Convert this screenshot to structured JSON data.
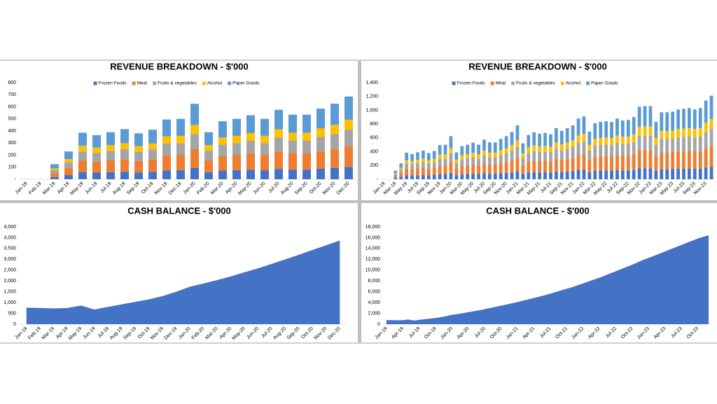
{
  "chart_data": [
    {
      "type": "bar",
      "stacked": true,
      "title": "REVENUE BREAKDOWN - $'000",
      "categories": [
        "Jan-19",
        "Feb-19",
        "Mar-19",
        "Apr-19",
        "May-19",
        "Jun-19",
        "Jul-19",
        "Aug-19",
        "Sep-19",
        "Oct-19",
        "Nov-19",
        "Dec-19",
        "Jan-20",
        "Feb-20",
        "Mar-20",
        "Apr-20",
        "May-20",
        "Jun-20",
        "Jul-20",
        "Aug-20",
        "Sep-20",
        "Oct-20",
        "Nov-20",
        "Dec-20"
      ],
      "series": [
        {
          "name": "Frozen Foods",
          "color": "#4472c4",
          "values": [
            0,
            0,
            19,
            35,
            58,
            55,
            59,
            62,
            57,
            62,
            74,
            75,
            94,
            59,
            72,
            75,
            80,
            75,
            86,
            80,
            80,
            88,
            94,
            103
          ]
        },
        {
          "name": "Meat",
          "color": "#ed7d31",
          "values": [
            0,
            0,
            31,
            58,
            96,
            91,
            98,
            104,
            95,
            103,
            124,
            125,
            156,
            98,
            120,
            125,
            133,
            125,
            144,
            134,
            134,
            146,
            156,
            171
          ]
        },
        {
          "name": "Fruits & vegetables",
          "color": "#a5a5a5",
          "values": [
            0,
            0,
            25,
            46,
            77,
            73,
            78,
            83,
            76,
            82,
            99,
            100,
            125,
            78,
            96,
            100,
            106,
            100,
            115,
            107,
            107,
            117,
            125,
            137
          ]
        },
        {
          "name": "Alcohol",
          "color": "#ffc000",
          "values": [
            0,
            0,
            15,
            28,
            46,
            44,
            47,
            50,
            46,
            49,
            59,
            60,
            75,
            47,
            58,
            60,
            64,
            60,
            69,
            64,
            64,
            70,
            75,
            82
          ]
        },
        {
          "name": "Paper Goods",
          "color": "#5b9bd5",
          "values": [
            0,
            0,
            35,
            63,
            108,
            102,
            108,
            116,
            106,
            114,
            139,
            140,
            175,
            108,
            134,
            140,
            147,
            140,
            161,
            150,
            150,
            164,
            175,
            192
          ]
        }
      ],
      "ylim": [
        0,
        800
      ],
      "yticks": [
        {
          "value": 0,
          "label": "-"
        },
        100,
        200,
        300,
        400,
        500,
        600,
        700,
        800
      ],
      "legend": "top"
    },
    {
      "type": "bar",
      "stacked": true,
      "title": "REVENUE BREAKDOWN - $'000",
      "categories": [
        "Jan-19",
        null,
        "Mar-19",
        null,
        "May-19",
        null,
        "Jul-19",
        null,
        "Sep-19",
        null,
        "Nov-19",
        null,
        "Jan-20",
        null,
        "Mar-20",
        null,
        "May-20",
        null,
        "Jul-20",
        null,
        "Sep-20",
        null,
        "Nov-20",
        null,
        "Jan-21",
        null,
        "Mar-21",
        null,
        "May-21",
        null,
        "Jul-21",
        null,
        "Sep-21",
        null,
        "Nov-21",
        null,
        "Jan-22",
        null,
        "Mar-22",
        null,
        "May-22",
        null,
        "Jul-22",
        null,
        "Sep-22",
        null,
        "Nov-22",
        null,
        "Jan-23",
        null,
        "Mar-23",
        null,
        "May-23",
        null,
        "Jul-23",
        null,
        "Sep-23",
        null,
        "Nov-23",
        null
      ],
      "series": [
        {
          "name": "Frozen Foods",
          "color": "#4472c4",
          "values": [
            0,
            0,
            19,
            35,
            58,
            55,
            59,
            62,
            57,
            62,
            74,
            75,
            94,
            59,
            72,
            75,
            80,
            75,
            86,
            80,
            80,
            88,
            94,
            103,
            117,
            78,
            96,
            102,
            99,
            101,
            98,
            111,
            105,
            111,
            117,
            132,
            137,
            104,
            122,
            125,
            126,
            125,
            132,
            128,
            129,
            135,
            158,
            159,
            159,
            125,
            146,
            146,
            147,
            152,
            153,
            155,
            152,
            155,
            171,
            182
          ]
        },
        {
          "name": "Meat",
          "color": "#ed7d31",
          "values": [
            0,
            0,
            31,
            58,
            96,
            91,
            98,
            104,
            95,
            103,
            124,
            125,
            156,
            98,
            120,
            125,
            133,
            125,
            144,
            134,
            134,
            146,
            156,
            171,
            195,
            130,
            160,
            170,
            165,
            168,
            163,
            185,
            175,
            185,
            195,
            220,
            228,
            173,
            203,
            208,
            210,
            208,
            220,
            213,
            215,
            225,
            263,
            265,
            265,
            208,
            243,
            243,
            245,
            253,
            255,
            258,
            253,
            258,
            285,
            303
          ]
        },
        {
          "name": "Fruits & vegetables",
          "color": "#a5a5a5",
          "values": [
            0,
            0,
            25,
            46,
            77,
            73,
            78,
            83,
            76,
            82,
            99,
            100,
            125,
            78,
            96,
            100,
            106,
            100,
            115,
            107,
            107,
            117,
            125,
            137,
            156,
            104,
            128,
            136,
            132,
            134,
            130,
            148,
            140,
            148,
            156,
            176,
            182,
            138,
            162,
            166,
            168,
            166,
            176,
            170,
            172,
            180,
            210,
            212,
            212,
            166,
            194,
            194,
            196,
            202,
            204,
            206,
            202,
            206,
            228,
            242
          ]
        },
        {
          "name": "Alcohol",
          "color": "#ffc000",
          "values": [
            0,
            0,
            15,
            28,
            46,
            44,
            47,
            50,
            46,
            49,
            59,
            60,
            75,
            47,
            58,
            60,
            64,
            60,
            69,
            64,
            64,
            70,
            75,
            82,
            94,
            62,
            77,
            82,
            79,
            80,
            78,
            89,
            84,
            89,
            94,
            106,
            109,
            83,
            97,
            100,
            101,
            100,
            106,
            102,
            103,
            108,
            126,
            127,
            127,
            100,
            116,
            116,
            118,
            121,
            122,
            124,
            121,
            124,
            137,
            145
          ]
        },
        {
          "name": "Paper Goods",
          "color": "#5b9bd5",
          "values": [
            0,
            0,
            35,
            63,
            108,
            102,
            108,
            116,
            106,
            114,
            139,
            140,
            175,
            108,
            134,
            140,
            147,
            140,
            161,
            150,
            150,
            164,
            175,
            192,
            218,
            146,
            179,
            190,
            185,
            188,
            182,
            207,
            196,
            207,
            218,
            246,
            255,
            193,
            227,
            232,
            235,
            232,
            246,
            238,
            241,
            252,
            294,
            297,
            297,
            232,
            272,
            272,
            274,
            283,
            286,
            288,
            283,
            288,
            319,
            339
          ]
        }
      ],
      "ylim": [
        0,
        1400
      ],
      "yticks": [
        {
          "value": 0,
          "label": "-"
        },
        200,
        400,
        600,
        800,
        {
          "value": 1000,
          "label": "1,000"
        },
        {
          "value": 1200,
          "label": "1,200"
        },
        {
          "value": 1400,
          "label": "1,400"
        }
      ],
      "legend": "top"
    },
    {
      "type": "area",
      "title": "CASH BALANCE - $'000",
      "color": "#4472c4",
      "categories": [
        "Jan-19",
        "Feb-19",
        "Mar-19",
        "Apr-19",
        "May-19",
        "Jun-19",
        "Jul-19",
        "Aug-19",
        "Sep-19",
        "Oct-19",
        "Nov-19",
        "Dec-19",
        "Jan-20",
        "Feb-20",
        "Mar-20",
        "Apr-20",
        "May-20",
        "Jun-20",
        "Jul-20",
        "Aug-20",
        "Sep-20",
        "Oct-20",
        "Nov-20",
        "Dec-20"
      ],
      "values": [
        760,
        750,
        730,
        750,
        860,
        680,
        800,
        920,
        1030,
        1150,
        1300,
        1500,
        1730,
        1880,
        2040,
        2210,
        2400,
        2580,
        2790,
        3000,
        3210,
        3430,
        3650,
        3870
      ],
      "ylim": [
        0,
        4500
      ],
      "yticks": [
        0,
        500,
        {
          "value": 1000,
          "label": "1,000"
        },
        {
          "value": 1500,
          "label": "1,500"
        },
        {
          "value": 2000,
          "label": "2,000"
        },
        {
          "value": 2500,
          "label": "2,500"
        },
        {
          "value": 3000,
          "label": "3,000"
        },
        {
          "value": 3500,
          "label": "3,500"
        },
        {
          "value": 4000,
          "label": "4,000"
        },
        {
          "value": 4500,
          "label": "4,500"
        }
      ]
    },
    {
      "type": "area",
      "title": "CASH BALANCE - $'000",
      "color": "#4472c4",
      "categories": [
        "Jan-19",
        null,
        null,
        "Apr-19",
        null,
        null,
        "Jul-19",
        null,
        null,
        "Oct-19",
        null,
        null,
        "Jan-20",
        null,
        null,
        "Apr-20",
        null,
        null,
        "Jul-20",
        null,
        null,
        "Oct-20",
        null,
        null,
        "Jan-21",
        null,
        null,
        "Apr-21",
        null,
        null,
        "Jul-21",
        null,
        null,
        "Oct-21",
        null,
        null,
        "Jan-22",
        null,
        null,
        "Apr-22",
        null,
        null,
        "Jul-22",
        null,
        null,
        "Oct-22",
        null,
        null,
        "Jan-23",
        null,
        null,
        "Apr-23",
        null,
        null,
        "Jul-23",
        null,
        null,
        "Oct-23",
        null,
        null
      ],
      "values": [
        760,
        750,
        730,
        750,
        860,
        680,
        800,
        920,
        1030,
        1150,
        1300,
        1500,
        1730,
        1880,
        2040,
        2210,
        2400,
        2580,
        2790,
        3000,
        3210,
        3430,
        3650,
        3870,
        4100,
        4350,
        4600,
        4850,
        5100,
        5350,
        5650,
        5950,
        6250,
        6550,
        6850,
        7200,
        7550,
        7900,
        8250,
        8600,
        9000,
        9400,
        9800,
        10200,
        10600,
        11000,
        11450,
        11900,
        12250,
        12650,
        13050,
        13450,
        13850,
        14250,
        14650,
        15050,
        15450,
        15850,
        16150,
        16450
      ],
      "ylim": [
        0,
        18000
      ],
      "yticks": [
        0,
        {
          "value": 2000,
          "label": "2,000"
        },
        {
          "value": 4000,
          "label": "4,000"
        },
        {
          "value": 6000,
          "label": "6,000"
        },
        {
          "value": 8000,
          "label": "8,000"
        },
        {
          "value": 10000,
          "label": "10,000"
        },
        {
          "value": 12000,
          "label": "12,000"
        },
        {
          "value": 14000,
          "label": "14,000"
        },
        {
          "value": 16000,
          "label": "16,000"
        },
        {
          "value": 18000,
          "label": "18,000"
        }
      ]
    }
  ]
}
